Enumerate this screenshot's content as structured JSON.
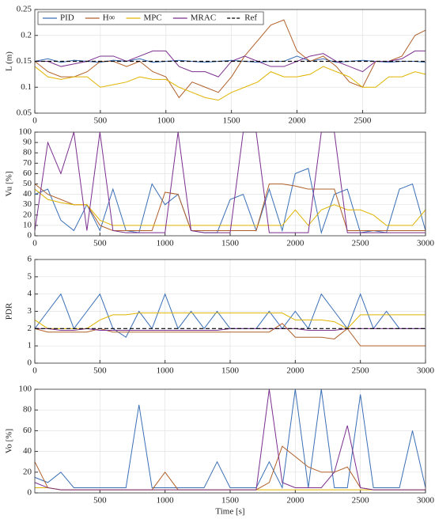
{
  "chart_data": [
    {
      "type": "line",
      "ylabel": "L (m)",
      "legend": "top-left",
      "grid": true,
      "x": [
        0,
        100,
        200,
        300,
        400,
        500,
        600,
        700,
        800,
        900,
        1000,
        1100,
        1200,
        1300,
        1400,
        1500,
        1600,
        1700,
        1800,
        1900,
        2000,
        2100,
        2200,
        2300,
        2400,
        2500,
        2600,
        2700,
        2800,
        2900,
        2980
      ],
      "xlim": [
        0,
        2980
      ],
      "xticks": [
        0,
        500,
        1000,
        1500,
        2000,
        2500
      ],
      "ylim": [
        0.05,
        0.25
      ],
      "yticks": [
        0.05,
        0.1,
        0.15,
        0.2,
        0.25
      ],
      "series": [
        {
          "name": "PID",
          "color": "#3a6fb6",
          "values": [
            0.15,
            0.155,
            0.148,
            0.152,
            0.15,
            0.148,
            0.152,
            0.15,
            0.155,
            0.148,
            0.15,
            0.152,
            0.15,
            0.148,
            0.15,
            0.152,
            0.15,
            0.148,
            0.15,
            0.15,
            0.16,
            0.15,
            0.155,
            0.148,
            0.15,
            0.152,
            0.15,
            0.148,
            0.15,
            0.15,
            0.148
          ]
        },
        {
          "name": "H∞",
          "color": "#b0602a",
          "values": [
            0.15,
            0.13,
            0.12,
            0.12,
            0.13,
            0.15,
            0.15,
            0.14,
            0.15,
            0.13,
            0.12,
            0.08,
            0.11,
            0.1,
            0.09,
            0.12,
            0.16,
            0.19,
            0.22,
            0.23,
            0.17,
            0.15,
            0.16,
            0.14,
            0.11,
            0.1,
            0.15,
            0.15,
            0.16,
            0.2,
            0.21
          ]
        },
        {
          "name": "MPC",
          "color": "#e0b400",
          "values": [
            0.14,
            0.12,
            0.115,
            0.12,
            0.12,
            0.1,
            0.105,
            0.11,
            0.12,
            0.115,
            0.115,
            0.1,
            0.09,
            0.08,
            0.075,
            0.09,
            0.1,
            0.11,
            0.13,
            0.12,
            0.12,
            0.125,
            0.14,
            0.13,
            0.12,
            0.1,
            0.1,
            0.12,
            0.12,
            0.13,
            0.125
          ]
        },
        {
          "name": "MRAC",
          "color": "#7b2f8e",
          "values": [
            0.15,
            0.15,
            0.14,
            0.145,
            0.15,
            0.16,
            0.16,
            0.15,
            0.16,
            0.17,
            0.17,
            0.14,
            0.13,
            0.13,
            0.12,
            0.15,
            0.16,
            0.15,
            0.14,
            0.14,
            0.15,
            0.16,
            0.165,
            0.15,
            0.14,
            0.13,
            0.15,
            0.15,
            0.155,
            0.17,
            0.17
          ]
        },
        {
          "name": "Ref",
          "color": "#000000",
          "linestyle": "dashed",
          "values": [
            0.15,
            0.15,
            0.15,
            0.15,
            0.15,
            0.15,
            0.15,
            0.15,
            0.15,
            0.15,
            0.15,
            0.15,
            0.15,
            0.15,
            0.15,
            0.15,
            0.15,
            0.15,
            0.15,
            0.15,
            0.15,
            0.15,
            0.15,
            0.15,
            0.15,
            0.15,
            0.15,
            0.15,
            0.15,
            0.15,
            0.15
          ]
        }
      ]
    },
    {
      "type": "line",
      "ylabel": "Vu [%]",
      "grid": true,
      "x": [
        0,
        100,
        200,
        300,
        400,
        500,
        600,
        700,
        800,
        900,
        1000,
        1100,
        1200,
        1300,
        1400,
        1500,
        1600,
        1700,
        1800,
        1900,
        2000,
        2100,
        2200,
        2300,
        2400,
        2500,
        2600,
        2700,
        2800,
        2900,
        3000
      ],
      "xlim": [
        0,
        3000
      ],
      "xticks": [
        0,
        500,
        1000,
        1500,
        2000,
        2500,
        3000
      ],
      "ylim": [
        0,
        100
      ],
      "yticks": [
        0,
        10,
        20,
        30,
        40,
        50,
        60,
        70,
        80,
        90,
        100
      ],
      "series": [
        {
          "color": "#3a6fb6",
          "values": [
            40,
            45,
            15,
            5,
            30,
            5,
            45,
            5,
            3,
            50,
            30,
            40,
            5,
            3,
            3,
            35,
            40,
            5,
            45,
            5,
            60,
            65,
            3,
            40,
            45,
            3,
            5,
            3,
            45,
            50,
            5
          ]
        },
        {
          "color": "#b0602a",
          "values": [
            50,
            40,
            35,
            30,
            30,
            10,
            5,
            5,
            5,
            5,
            42,
            40,
            5,
            5,
            5,
            5,
            5,
            5,
            50,
            50,
            48,
            45,
            45,
            45,
            5,
            5,
            5,
            5,
            5,
            5,
            5
          ]
        },
        {
          "color": "#e0b400",
          "values": [
            45,
            35,
            32,
            30,
            30,
            15,
            10,
            10,
            10,
            10,
            10,
            10,
            10,
            10,
            10,
            10,
            10,
            10,
            10,
            10,
            25,
            10,
            25,
            30,
            25,
            25,
            20,
            10,
            10,
            10,
            25
          ]
        },
        {
          "color": "#7b2f8e",
          "values": [
            5,
            90,
            60,
            100,
            5,
            100,
            5,
            3,
            3,
            3,
            3,
            100,
            5,
            3,
            3,
            3,
            100,
            100,
            3,
            3,
            3,
            3,
            100,
            100,
            3,
            3,
            3,
            3,
            3,
            3,
            3
          ]
        }
      ]
    },
    {
      "type": "line",
      "ylabel": "PDR",
      "grid": true,
      "x": [
        0,
        100,
        200,
        300,
        400,
        500,
        600,
        700,
        800,
        900,
        1000,
        1100,
        1200,
        1300,
        1400,
        1500,
        1600,
        1700,
        1800,
        1900,
        2000,
        2100,
        2200,
        2300,
        2400,
        2500,
        2600,
        2700,
        2800,
        2900,
        3000
      ],
      "xlim": [
        0,
        3000
      ],
      "xticks": [
        0,
        500,
        1000,
        1500,
        2000,
        2500,
        3000
      ],
      "ylim": [
        0,
        6
      ],
      "yticks": [
        0,
        1,
        2,
        3,
        4,
        5,
        6
      ],
      "series": [
        {
          "color": "#3a6fb6",
          "values": [
            2,
            3,
            4,
            2,
            3,
            4,
            2,
            1.5,
            3,
            2,
            4,
            2,
            3,
            2,
            3,
            2,
            2,
            2,
            3,
            2,
            3,
            2,
            4,
            3,
            2,
            4,
            2,
            3,
            2,
            2,
            2
          ]
        },
        {
          "color": "#b0602a",
          "values": [
            2,
            1.8,
            1.8,
            1.8,
            1.8,
            2,
            1.8,
            1.8,
            1.8,
            1.8,
            1.8,
            1.8,
            1.8,
            1.8,
            1.8,
            1.8,
            1.8,
            1.8,
            1.8,
            2.3,
            1.5,
            1.5,
            1.5,
            1.4,
            2,
            1,
            1,
            1,
            1,
            1,
            1
          ]
        },
        {
          "color": "#e0b400",
          "values": [
            2.5,
            2,
            2,
            2,
            2,
            2.5,
            2.8,
            2.8,
            2.9,
            2.9,
            2.9,
            2.9,
            2.9,
            2.9,
            2.9,
            2.9,
            2.9,
            2.9,
            2.9,
            2.9,
            2.5,
            2.5,
            2.5,
            2.4,
            2,
            2.8,
            2.8,
            2.8,
            2.8,
            2.8,
            2.8
          ]
        },
        {
          "color": "#7b2f8e",
          "values": [
            2,
            2,
            1.9,
            1.9,
            2,
            1.9,
            1.9,
            1.9,
            1.9,
            1.9,
            1.9,
            1.9,
            1.9,
            1.9,
            1.9,
            2,
            2,
            2,
            2,
            2,
            2,
            1.9,
            1.9,
            1.9,
            2,
            2,
            2,
            2,
            2,
            2,
            2
          ]
        },
        {
          "color": "#000000",
          "linestyle": "dashed",
          "values": [
            2,
            2,
            2,
            2,
            2,
            2,
            2,
            2,
            2,
            2,
            2,
            2,
            2,
            2,
            2,
            2,
            2,
            2,
            2,
            2,
            2,
            2,
            2,
            2,
            2,
            2,
            2,
            2,
            2,
            2,
            2
          ]
        }
      ]
    },
    {
      "type": "line",
      "ylabel": "Vo [%]",
      "xlabel": "Time [s]",
      "grid": true,
      "x": [
        0,
        100,
        200,
        300,
        400,
        500,
        600,
        700,
        800,
        900,
        1000,
        1100,
        1200,
        1300,
        1400,
        1500,
        1600,
        1700,
        1800,
        1900,
        2000,
        2100,
        2200,
        2300,
        2400,
        2500,
        2600,
        2700,
        2800,
        2900,
        3000
      ],
      "xlim": [
        0,
        3000
      ],
      "xticks": [
        500,
        1000,
        1500,
        2000,
        2500,
        3000
      ],
      "ylim": [
        0,
        100
      ],
      "yticks": [
        0,
        20,
        40,
        60,
        80,
        100
      ],
      "series": [
        {
          "color": "#3a6fb6",
          "values": [
            15,
            10,
            20,
            5,
            5,
            5,
            5,
            5,
            85,
            5,
            5,
            5,
            5,
            5,
            30,
            5,
            5,
            5,
            30,
            5,
            100,
            5,
            100,
            5,
            5,
            95,
            5,
            5,
            5,
            60,
            5
          ]
        },
        {
          "color": "#b0602a",
          "values": [
            30,
            5,
            3,
            3,
            3,
            3,
            3,
            3,
            3,
            3,
            20,
            3,
            3,
            3,
            3,
            3,
            3,
            3,
            10,
            45,
            35,
            25,
            20,
            20,
            25,
            5,
            3,
            3,
            3,
            3,
            3
          ]
        },
        {
          "color": "#e0b400",
          "values": [
            5,
            5,
            3,
            3,
            3,
            3,
            3,
            3,
            3,
            3,
            3,
            3,
            3,
            3,
            3,
            3,
            3,
            3,
            3,
            3,
            3,
            3,
            3,
            3,
            3,
            3,
            3,
            3,
            3,
            3,
            3
          ]
        },
        {
          "color": "#7b2f8e",
          "values": [
            10,
            5,
            3,
            3,
            3,
            3,
            3,
            3,
            3,
            3,
            3,
            3,
            3,
            3,
            3,
            3,
            3,
            3,
            100,
            10,
            5,
            5,
            5,
            20,
            65,
            5,
            3,
            3,
            3,
            3,
            3
          ]
        }
      ]
    }
  ]
}
